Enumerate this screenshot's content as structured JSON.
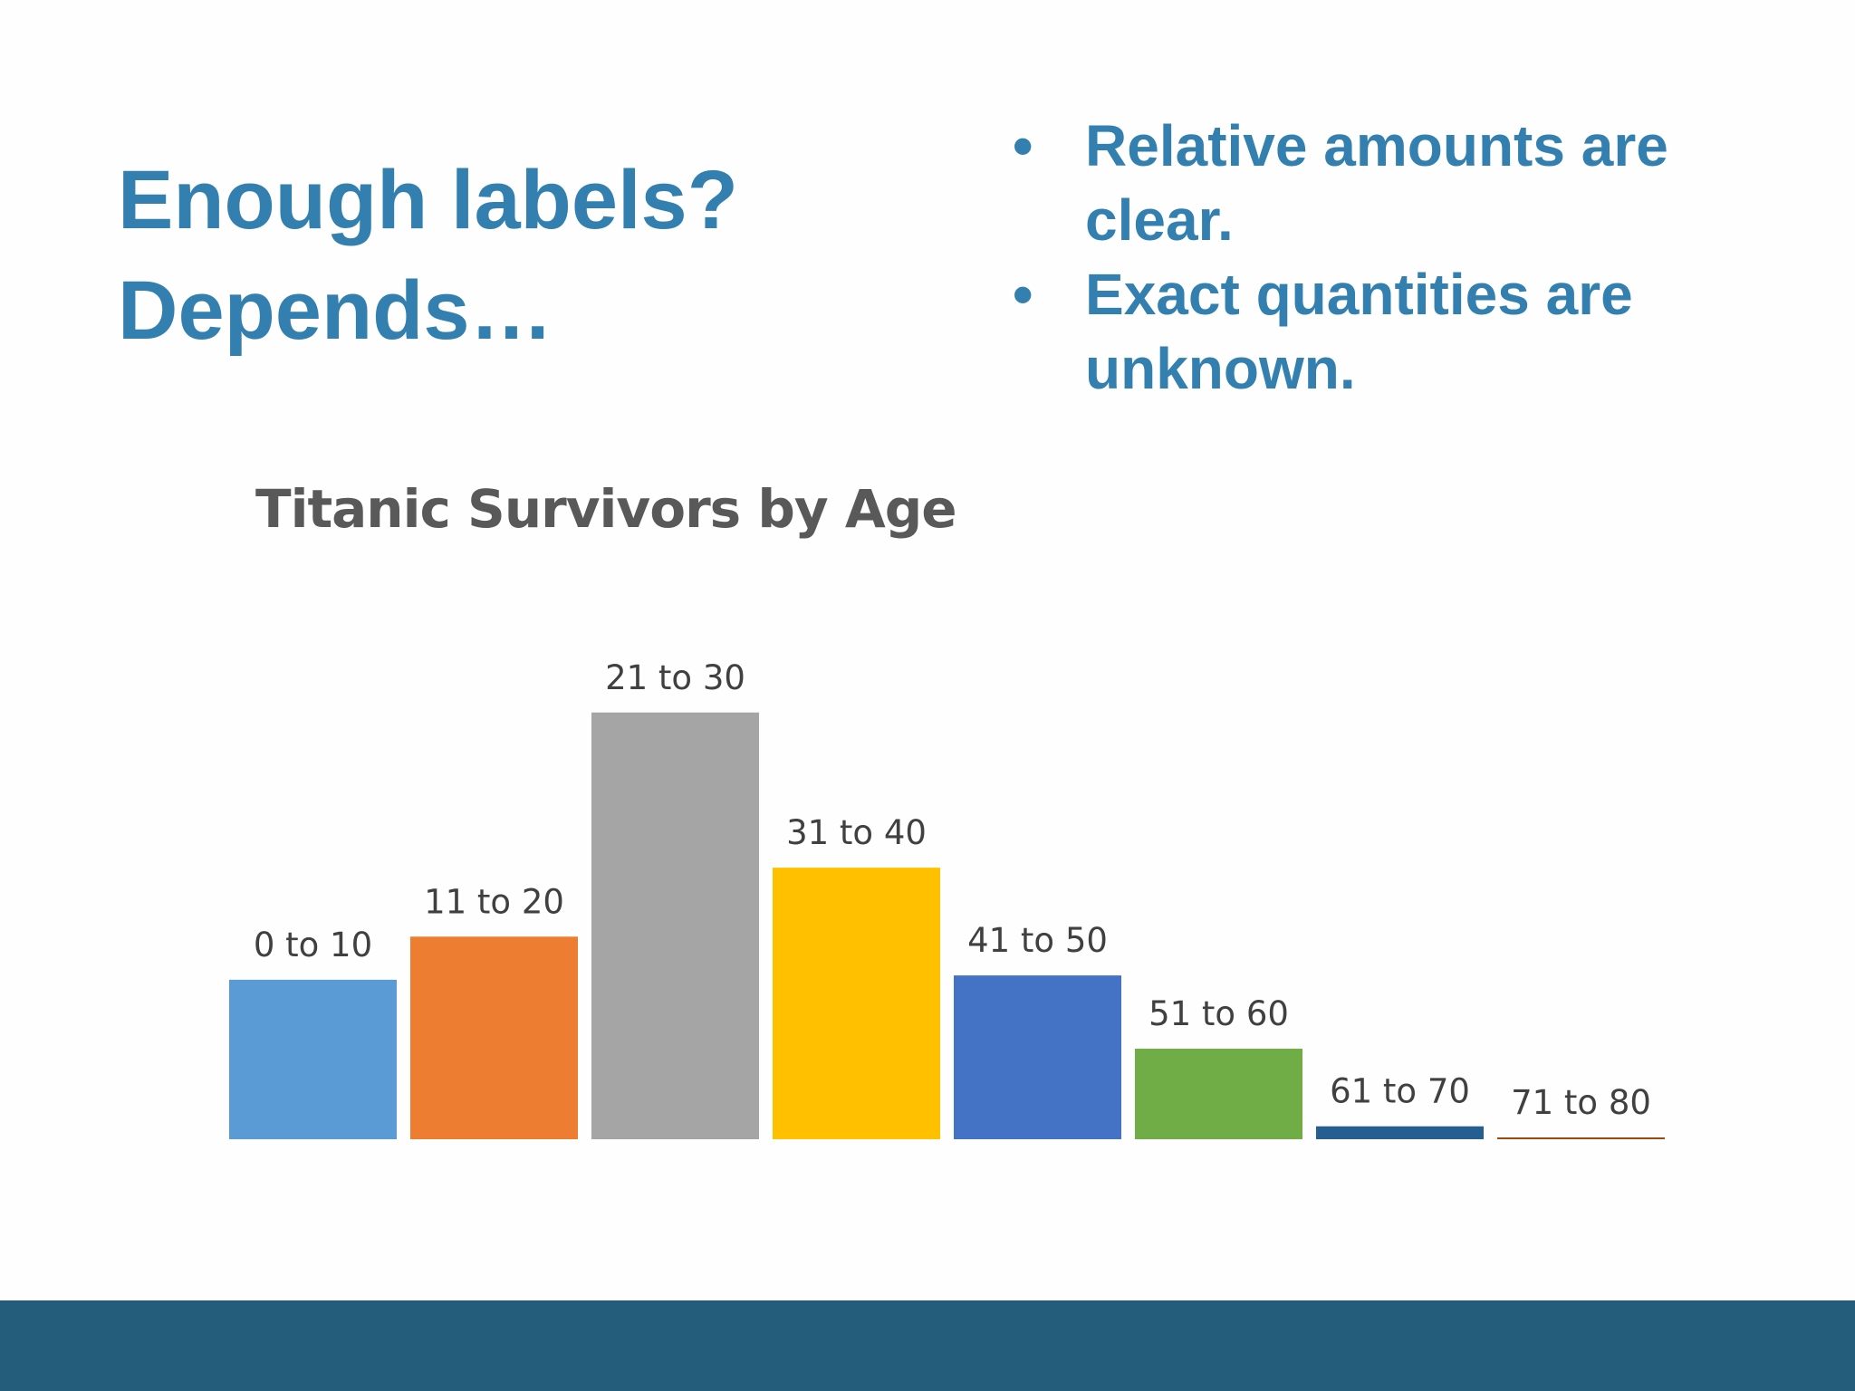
{
  "slide": {
    "title_lines": [
      "Enough labels?",
      "Depends…"
    ],
    "bullets": [
      {
        "lines": [
          "Relative amounts are",
          "clear."
        ]
      },
      {
        "lines": [
          "Exact quantities are",
          "unknown."
        ]
      }
    ]
  },
  "chart_data": {
    "type": "bar",
    "title": "Titanic Survivors by Age",
    "xlabel": "",
    "ylabel": "",
    "categories": [
      "0 to 10",
      "11 to 20",
      "21 to 30",
      "31 to 40",
      "41 to 50",
      "51 to 60",
      "61 to 70",
      "71 to 80"
    ],
    "values": [
      37,
      47,
      99,
      63,
      38,
      21,
      3,
      0.4
    ],
    "colors": [
      "#5b9bd5",
      "#ed7d31",
      "#a5a5a5",
      "#ffc000",
      "#4472c4",
      "#70ad47",
      "#255e91",
      "#9e480e"
    ],
    "ylim": [
      0,
      100
    ],
    "grid": false,
    "axes_visible": false,
    "data_labels": "category names above bars"
  }
}
